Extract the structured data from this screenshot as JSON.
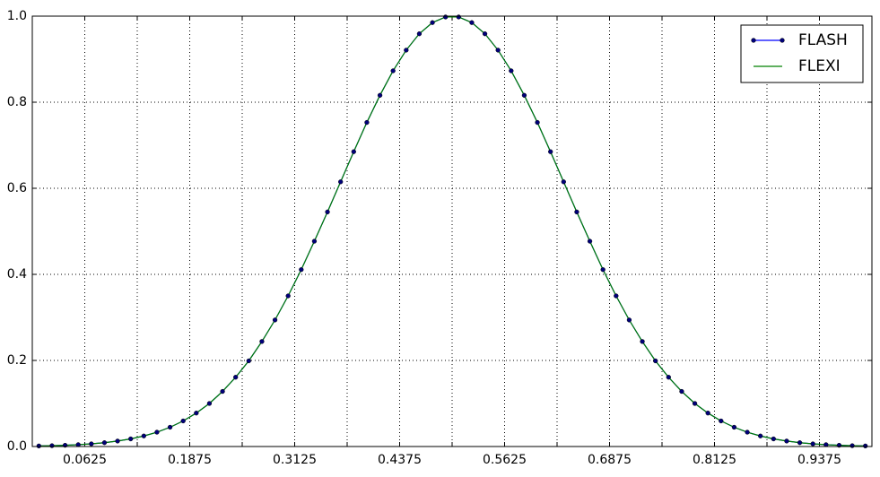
{
  "chart_data": {
    "type": "line",
    "x": [
      0.0078125,
      0.0234375,
      0.0390625,
      0.0546875,
      0.0703125,
      0.0859375,
      0.1015625,
      0.1171875,
      0.1328125,
      0.1484375,
      0.1640625,
      0.1796875,
      0.1953125,
      0.2109375,
      0.2265625,
      0.2421875,
      0.2578125,
      0.2734375,
      0.2890625,
      0.3046875,
      0.3203125,
      0.3359375,
      0.3515625,
      0.3671875,
      0.3828125,
      0.3984375,
      0.4140625,
      0.4296875,
      0.4453125,
      0.4609375,
      0.4765625,
      0.4921875,
      0.5078125,
      0.5234375,
      0.5390625,
      0.5546875,
      0.5703125,
      0.5859375,
      0.6015625,
      0.6171875,
      0.6328125,
      0.6484375,
      0.6640625,
      0.6796875,
      0.6953125,
      0.7109375,
      0.7265625,
      0.7421875,
      0.7578125,
      0.7734375,
      0.7890625,
      0.8046875,
      0.8203125,
      0.8359375,
      0.8515625,
      0.8671875,
      0.8828125,
      0.8984375,
      0.9140625,
      0.9296875,
      0.9453125,
      0.9609375,
      0.9765625,
      0.9921875
    ],
    "series": [
      {
        "name": "FLASH",
        "color": "#0000ff",
        "marker_color": "#00007a",
        "marker": true,
        "values": [
          0.0013,
          0.0019,
          0.0029,
          0.0043,
          0.0062,
          0.0089,
          0.0127,
          0.0177,
          0.0245,
          0.0333,
          0.0448,
          0.0594,
          0.0777,
          0.1,
          0.128,
          0.161,
          0.199,
          0.244,
          0.294,
          0.35,
          0.411,
          0.477,
          0.545,
          0.615,
          0.685,
          0.753,
          0.816,
          0.873,
          0.921,
          0.959,
          0.985,
          0.998,
          0.998,
          0.985,
          0.959,
          0.921,
          0.873,
          0.816,
          0.753,
          0.685,
          0.615,
          0.545,
          0.477,
          0.411,
          0.35,
          0.294,
          0.244,
          0.199,
          0.161,
          0.128,
          0.1,
          0.0777,
          0.0594,
          0.0448,
          0.0333,
          0.0245,
          0.0177,
          0.0127,
          0.0089,
          0.0062,
          0.0043,
          0.0029,
          0.0019,
          0.0013
        ]
      },
      {
        "name": "FLEXI",
        "color": "#008000",
        "marker": false,
        "values": [
          0.0013,
          0.0019,
          0.0029,
          0.0043,
          0.0062,
          0.0089,
          0.0127,
          0.0177,
          0.0245,
          0.0333,
          0.0448,
          0.0594,
          0.0777,
          0.1,
          0.128,
          0.161,
          0.199,
          0.244,
          0.294,
          0.35,
          0.411,
          0.477,
          0.545,
          0.615,
          0.685,
          0.753,
          0.816,
          0.873,
          0.921,
          0.959,
          0.985,
          0.998,
          0.998,
          0.985,
          0.959,
          0.921,
          0.873,
          0.816,
          0.753,
          0.685,
          0.615,
          0.545,
          0.477,
          0.411,
          0.35,
          0.294,
          0.244,
          0.199,
          0.161,
          0.128,
          0.1,
          0.0777,
          0.0594,
          0.0448,
          0.0333,
          0.0245,
          0.0177,
          0.0127,
          0.0089,
          0.0062,
          0.0043,
          0.0029,
          0.0019,
          0.0013
        ]
      }
    ],
    "xlim": [
      0,
      1
    ],
    "xticks": [
      0.0625,
      0.1875,
      0.3125,
      0.4375,
      0.5625,
      0.6875,
      0.8125,
      0.9375
    ],
    "xminorticks": [
      0.125,
      0.25,
      0.375,
      0.5,
      0.625,
      0.75,
      0.875
    ],
    "ylim": [
      0,
      1
    ],
    "yticks": [
      {
        "value": 0,
        "label": "0.0"
      },
      0.2,
      0.4,
      0.6,
      0.8,
      {
        "value": 1,
        "label": "1.0"
      }
    ],
    "grid": true,
    "legend": "upper right"
  }
}
